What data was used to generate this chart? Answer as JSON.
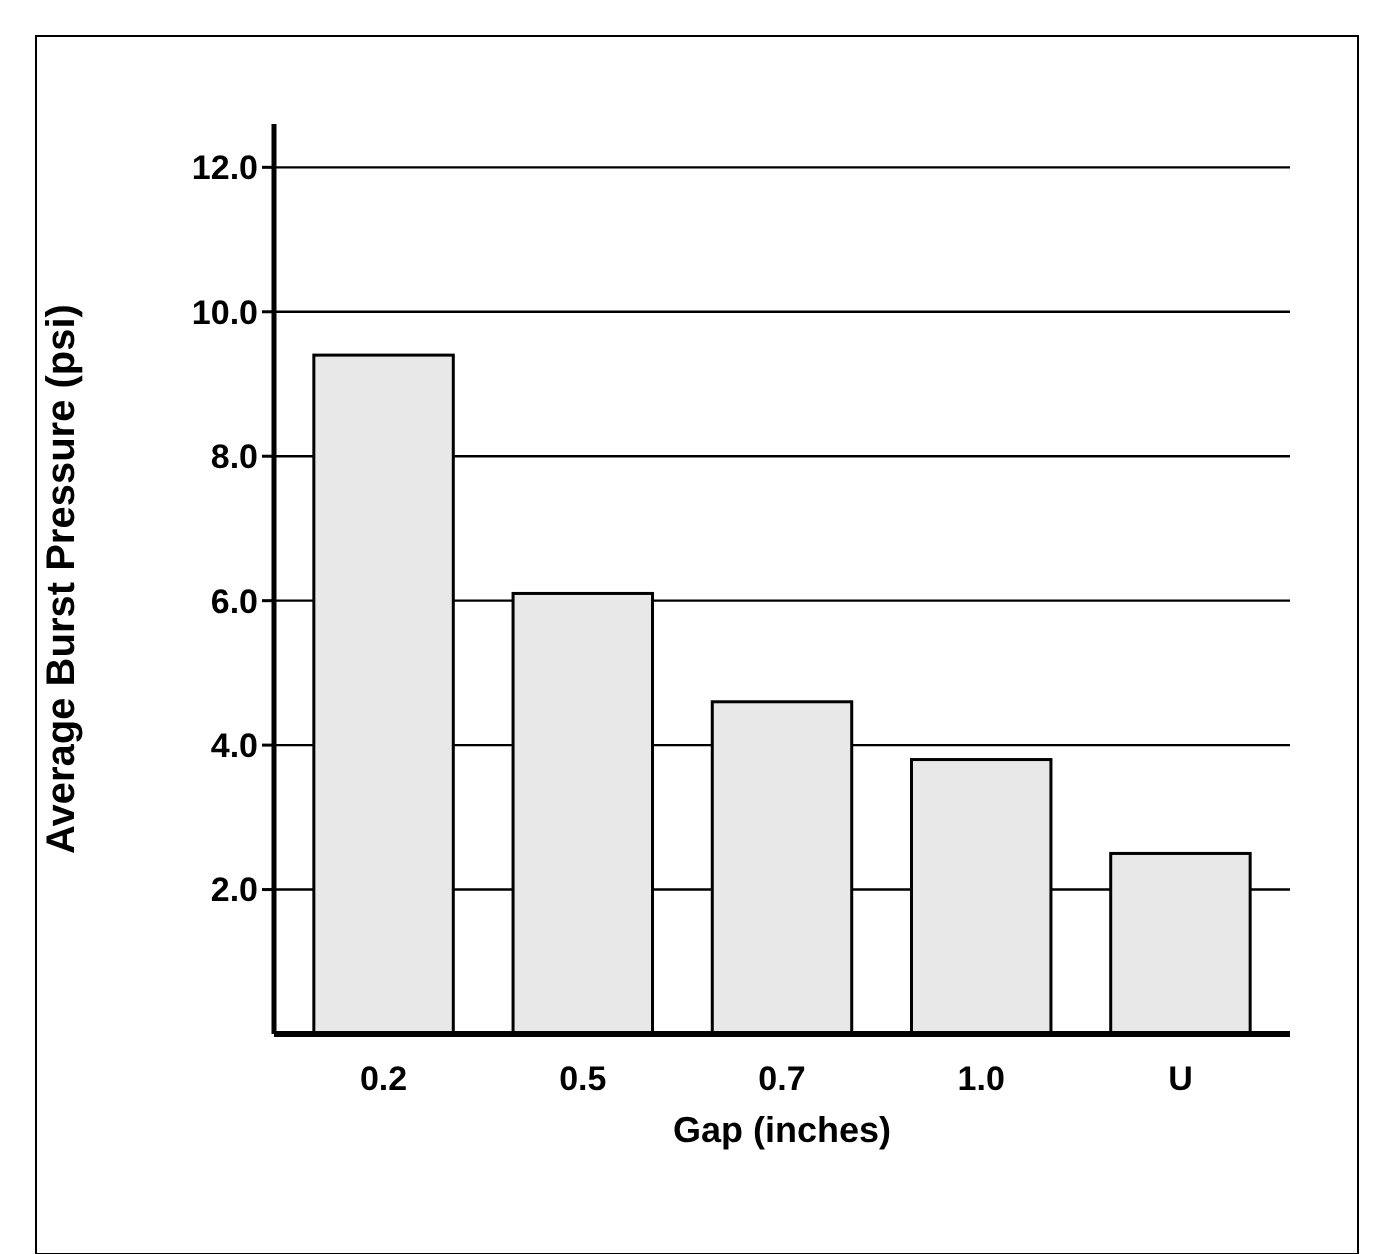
{
  "chart_data": {
    "type": "bar",
    "xlabel": "Gap (inches)",
    "ylabel": "Average Burst Pressure (psi)",
    "categories": [
      "0.2",
      "0.5",
      "0.7",
      "1.0",
      "U"
    ],
    "values": [
      9.4,
      6.1,
      4.6,
      3.8,
      2.5
    ],
    "color": "#e8e8e8",
    "ylim": [
      0,
      12.6
    ],
    "yticks": [
      {
        "value": 2,
        "label": "2.0"
      },
      {
        "value": 4,
        "label": "4.0"
      },
      {
        "value": 6,
        "label": "6.0"
      },
      {
        "value": 8,
        "label": "8.0"
      },
      {
        "value": 10,
        "label": "10.0"
      },
      {
        "value": 12,
        "label": "12.0"
      }
    ],
    "grid": "y"
  }
}
